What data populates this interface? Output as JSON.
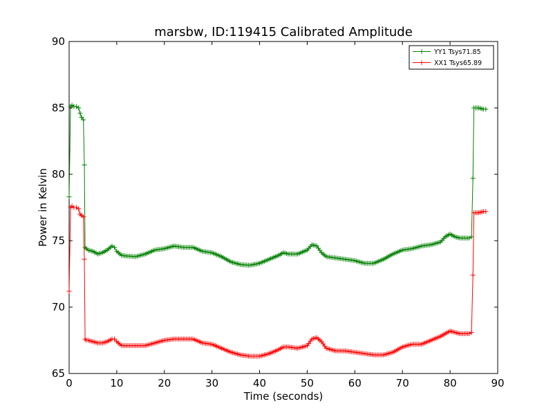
{
  "chart_data": {
    "type": "line",
    "title": "marsbw, ID:119415 Calibrated Amplitude",
    "xlabel": "Time (seconds)",
    "ylabel": "Power in Kelvin",
    "xlim": [
      0,
      90
    ],
    "ylim": [
      65,
      90
    ],
    "xticks": [
      0,
      10,
      20,
      30,
      40,
      50,
      60,
      70,
      80,
      90
    ],
    "yticks": [
      65,
      70,
      75,
      80,
      85,
      90
    ],
    "grid": false,
    "legend_position": "top-right",
    "marker": "+",
    "series": [
      {
        "name": "YY1 Tsys71.85",
        "color": "#008000",
        "x": [
          0,
          0.3,
          0.6,
          1,
          1.5,
          2,
          2.3,
          2.6,
          3,
          3.2,
          3.35,
          3.6,
          4,
          5,
          6,
          7,
          8,
          9,
          9.5,
          10,
          11,
          12,
          14,
          16,
          18,
          20,
          22,
          24,
          26,
          28,
          30,
          32,
          34,
          36,
          38,
          40,
          42,
          44,
          45,
          46,
          48,
          50,
          51,
          52,
          53,
          54,
          56,
          58,
          60,
          62,
          64,
          66,
          68,
          70,
          72,
          74,
          76,
          78,
          79,
          80,
          81,
          82,
          83,
          84,
          84.5,
          84.8,
          85,
          86,
          87,
          87.5
        ],
        "y": [
          78.3,
          85.1,
          85.2,
          85.1,
          85.1,
          85,
          84.6,
          84.3,
          84.1,
          80.7,
          74.5,
          74.4,
          74.3,
          74.2,
          74.0,
          74.1,
          74.3,
          74.6,
          74.5,
          74.2,
          73.9,
          73.85,
          73.8,
          74.0,
          74.3,
          74.4,
          74.6,
          74.5,
          74.5,
          74.2,
          74.1,
          73.8,
          73.4,
          73.2,
          73.15,
          73.3,
          73.6,
          73.9,
          74.1,
          74.0,
          74.0,
          74.3,
          74.7,
          74.6,
          74.1,
          73.8,
          73.7,
          73.6,
          73.5,
          73.3,
          73.3,
          73.6,
          74.0,
          74.3,
          74.4,
          74.6,
          74.7,
          74.9,
          75.3,
          75.5,
          75.3,
          75.2,
          75.2,
          75.2,
          75.3,
          79.7,
          85,
          85,
          84.9,
          84.9
        ]
      },
      {
        "name": "XX1 Tsys65.89",
        "color": "#ff0000",
        "x": [
          0,
          0.3,
          0.6,
          1,
          1.5,
          2,
          2.3,
          2.6,
          3,
          3.2,
          3.35,
          3.6,
          4,
          5,
          6,
          7,
          8,
          9,
          9.5,
          10,
          11,
          12,
          14,
          16,
          18,
          20,
          22,
          24,
          26,
          28,
          30,
          32,
          34,
          36,
          38,
          40,
          42,
          44,
          45,
          46,
          48,
          50,
          51,
          52,
          53,
          54,
          56,
          58,
          60,
          62,
          64,
          66,
          68,
          70,
          72,
          74,
          76,
          78,
          79,
          80,
          81,
          82,
          83,
          84,
          84.5,
          84.8,
          85,
          86,
          87,
          87.5
        ],
        "y": [
          71.2,
          77.5,
          77.6,
          77.5,
          77.5,
          77.4,
          77.0,
          76.9,
          76.8,
          73.6,
          67.6,
          67.5,
          67.5,
          67.4,
          67.3,
          67.3,
          67.4,
          67.6,
          67.6,
          67.4,
          67.1,
          67.1,
          67.1,
          67.1,
          67.3,
          67.5,
          67.6,
          67.6,
          67.6,
          67.3,
          67.2,
          66.9,
          66.6,
          66.4,
          66.3,
          66.3,
          66.5,
          66.8,
          67.0,
          67.0,
          66.9,
          67.1,
          67.6,
          67.7,
          67.4,
          66.9,
          66.7,
          66.7,
          66.6,
          66.5,
          66.4,
          66.4,
          66.6,
          67.0,
          67.2,
          67.2,
          67.5,
          67.8,
          68.0,
          68.2,
          68.1,
          68.0,
          68.0,
          68.0,
          68.1,
          72.4,
          77.1,
          77.1,
          77.2,
          77.2
        ]
      }
    ]
  }
}
